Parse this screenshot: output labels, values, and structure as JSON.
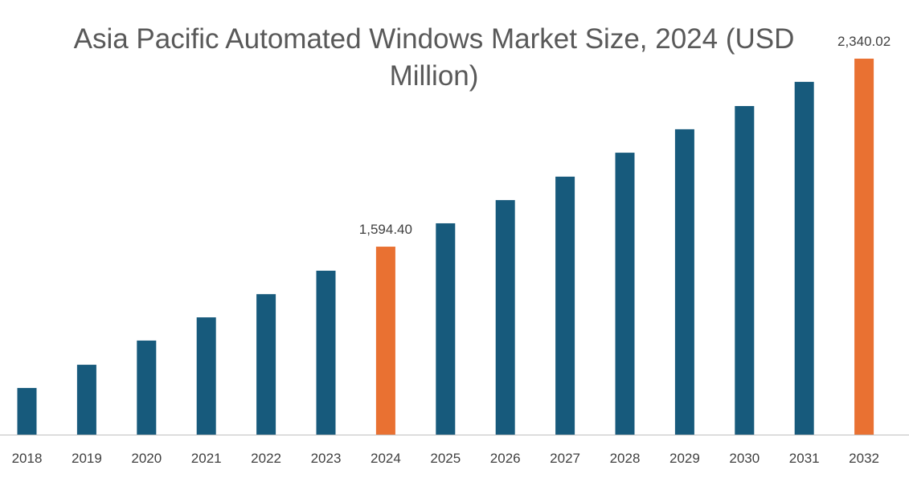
{
  "chart_data": {
    "type": "bar",
    "title": "Asia Pacific Automated Windows Market Size, 2024 (USD Million)",
    "xlabel": "",
    "ylabel": "",
    "categories": [
      "2018",
      "2019",
      "2020",
      "2021",
      "2022",
      "2023",
      "2024",
      "2025",
      "2026",
      "2027",
      "2028",
      "2029",
      "2030",
      "2031",
      "2032"
    ],
    "values": [
      1034,
      1126,
      1222,
      1314,
      1406,
      1499,
      1594.4,
      1687,
      1779,
      1872,
      1967,
      2060,
      2152,
      2248,
      2340.02
    ],
    "data_labels": {
      "2024": "1,594.40",
      "2032": "2,340.02"
    },
    "highlighted": [
      "2024",
      "2032"
    ],
    "ylim": [
      849,
      2340.02
    ],
    "grid": false,
    "legend": "none",
    "colors": {
      "bar": "#175a7c",
      "highlight": "#e97132",
      "axis": "#bfbfbf"
    }
  }
}
